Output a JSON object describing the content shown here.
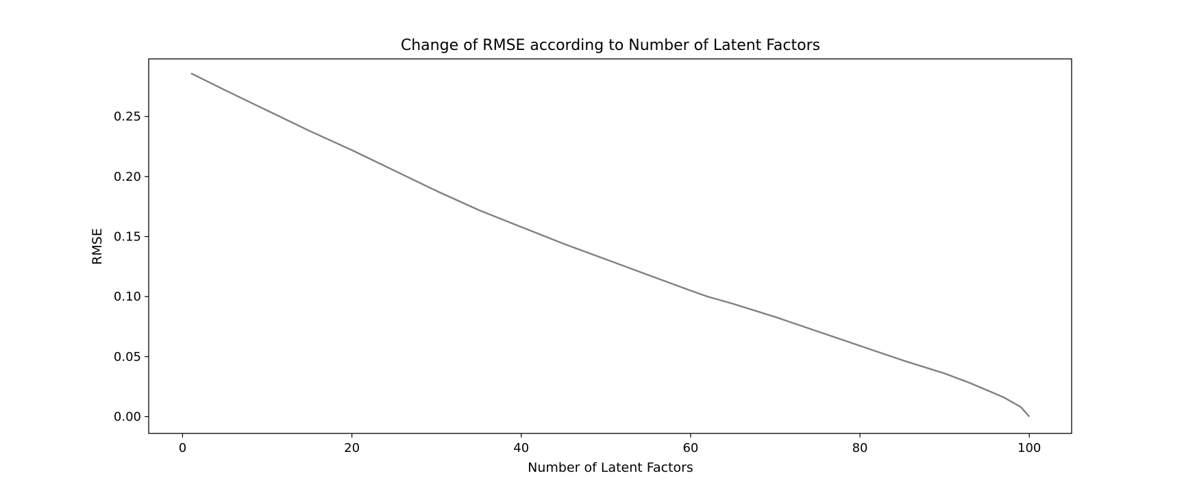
{
  "chart_data": {
    "type": "line",
    "title": "Change of RMSE according to Number of Latent Factors",
    "xlabel": "Number of Latent Factors",
    "ylabel": "RMSE",
    "xlim": [
      -4,
      105
    ],
    "ylim": [
      -0.014,
      0.298
    ],
    "xticks": [
      0,
      20,
      40,
      60,
      80,
      100
    ],
    "yticks": [
      0.0,
      0.05,
      0.1,
      0.15,
      0.2,
      0.25
    ],
    "ytick_labels": [
      "0.00",
      "0.05",
      "0.10",
      "0.15",
      "0.20",
      "0.25"
    ],
    "grid": false,
    "legend": "none",
    "series": [
      {
        "color": "#808080",
        "x": [
          1,
          5,
          10,
          15,
          20,
          25,
          30,
          35,
          40,
          45,
          50,
          55,
          60,
          62,
          65,
          70,
          75,
          80,
          85,
          90,
          93,
          95,
          97,
          99,
          100
        ],
        "y": [
          0.286,
          0.272,
          0.255,
          0.238,
          0.222,
          0.205,
          0.188,
          0.172,
          0.158,
          0.144,
          0.131,
          0.118,
          0.105,
          0.1,
          0.094,
          0.083,
          0.071,
          0.059,
          0.047,
          0.036,
          0.028,
          0.022,
          0.016,
          0.008,
          0.0
        ]
      }
    ]
  }
}
